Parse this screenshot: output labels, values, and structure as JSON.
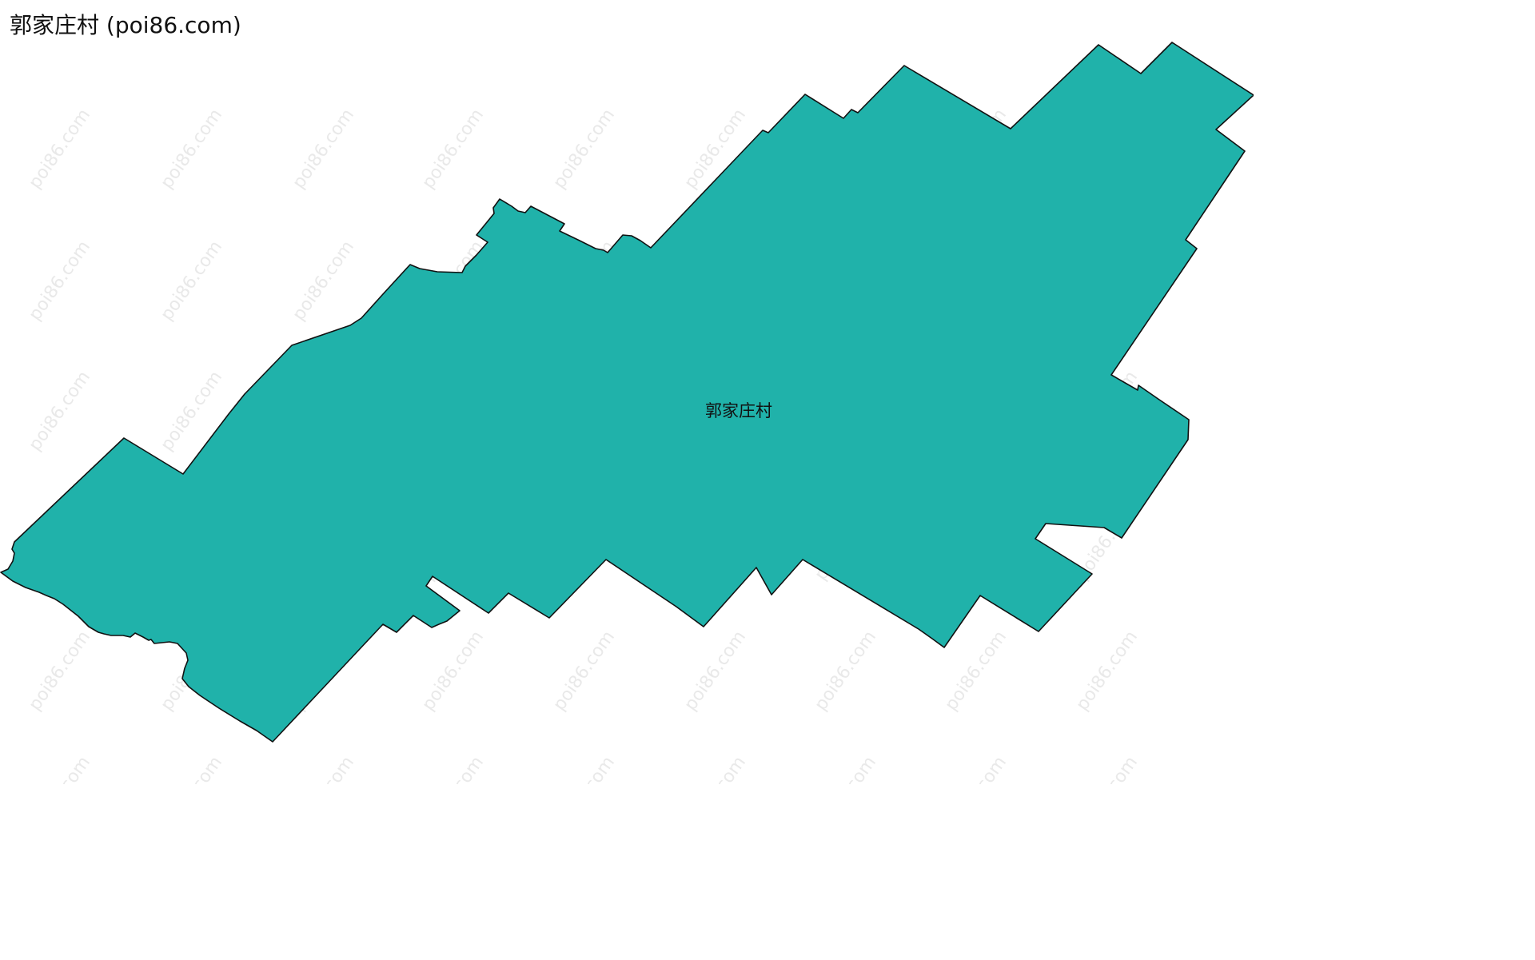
{
  "title": "郭家庄村 (poi86.com)",
  "region": {
    "name": "郭家庄村",
    "fill_color": "#20B2AA",
    "stroke_color": "#111111"
  },
  "watermark": {
    "text": "poi86.com",
    "color": "#e9e9e9"
  }
}
